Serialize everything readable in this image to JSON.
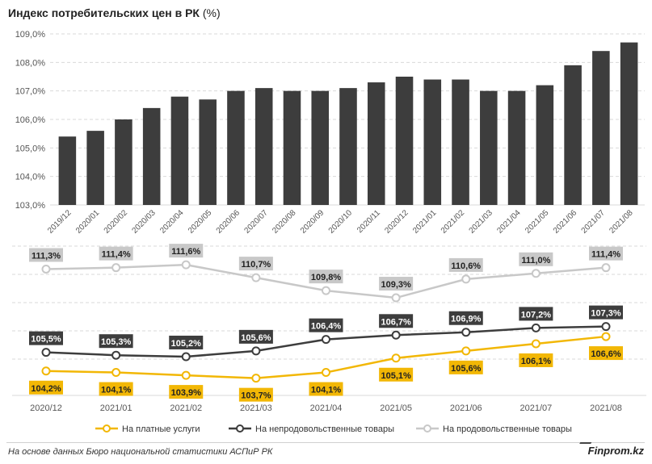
{
  "title": {
    "main": "Индекс потребительских цен в РК",
    "unit": "(%)"
  },
  "footer": {
    "source": "На основе данных Бюро национальной статистики АСПиР РК",
    "brand": "Finprom.kz"
  },
  "colors": {
    "bar": "#3d3d3d",
    "services": "#f2b705",
    "nonfood": "#3d3d3d",
    "food": "#c8c8c8",
    "grid": "#d9d9d9",
    "axis_text": "#555555"
  },
  "chart_data": [
    {
      "type": "bar",
      "categories": [
        "2019/12",
        "2020/01",
        "2020/02",
        "2020/03",
        "2020/04",
        "2020/05",
        "2020/06",
        "2020/07",
        "2020/08",
        "2020/09",
        "2020/10",
        "2020/11",
        "2020/12",
        "2021/01",
        "2021/02",
        "2021/03",
        "2021/04",
        "2021/05",
        "2021/06",
        "2021/07",
        "2021/08"
      ],
      "values": [
        105.4,
        105.6,
        106.0,
        106.4,
        106.8,
        106.7,
        107.0,
        107.1,
        107.0,
        107.0,
        107.1,
        107.3,
        107.5,
        107.4,
        107.4,
        107.0,
        107.0,
        107.2,
        107.9,
        108.4,
        108.7
      ],
      "ylim": [
        103.0,
        109.0
      ],
      "yticks": [
        "103,0%",
        "104,0%",
        "105,0%",
        "106,0%",
        "107,0%",
        "108,0%",
        "109,0%"
      ],
      "grid": true
    },
    {
      "type": "line",
      "categories": [
        "2020/12",
        "2021/01",
        "2021/02",
        "2021/03",
        "2021/04",
        "2021/05",
        "2021/06",
        "2021/07",
        "2021/08"
      ],
      "series": [
        {
          "name": "На платные услуги",
          "values": [
            104.2,
            104.1,
            103.9,
            103.7,
            104.1,
            105.1,
            105.6,
            106.1,
            106.6
          ],
          "labels": [
            "104,2%",
            "104,1%",
            "103,9%",
            "103,7%",
            "104,1%",
            "105,1%",
            "105,6%",
            "106,1%",
            "106,6%"
          ]
        },
        {
          "name": "На непродовольственные товары",
          "values": [
            105.5,
            105.3,
            105.2,
            105.6,
            106.4,
            106.7,
            106.9,
            107.2,
            107.3
          ],
          "labels": [
            "105,5%",
            "105,3%",
            "105,2%",
            "105,6%",
            "106,4%",
            "106,7%",
            "106,9%",
            "107,2%",
            "107,3%"
          ]
        },
        {
          "name": "На продовольственные товары",
          "values": [
            111.3,
            111.4,
            111.6,
            110.7,
            109.8,
            109.3,
            110.6,
            111.0,
            111.4
          ],
          "labels": [
            "111,3%",
            "111,4%",
            "111,6%",
            "110,7%",
            "109,8%",
            "109,3%",
            "110,6%",
            "111,0%",
            "111,4%"
          ]
        }
      ],
      "legend_position": "bottom",
      "grid": true
    }
  ]
}
